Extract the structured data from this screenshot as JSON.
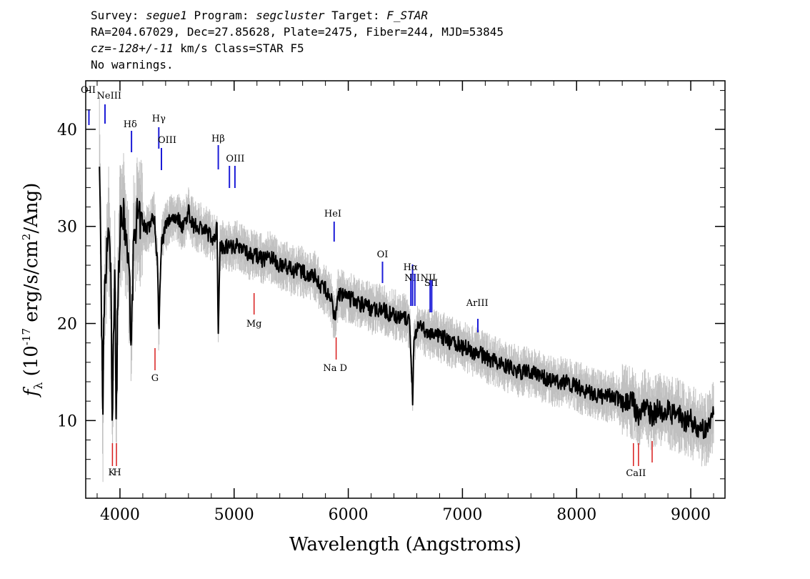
{
  "header": {
    "line1": {
      "survey_label": "Survey: ",
      "survey": "segue1",
      "program_label": " Program: ",
      "program": "segcluster",
      "target_label": " Target: ",
      "target": "F_STAR"
    },
    "line2": "RA=204.67029, Dec=27.85628, Plate=2475, Fiber=244, MJD=53845",
    "line3": {
      "cz": "cz=-128+/-11",
      "rest": " km/s Class=STAR F5"
    },
    "line4": "No warnings."
  },
  "chart_data": {
    "type": "line",
    "xlabel": "Wavelength (Angstroms)",
    "ylabel_main": "f",
    "ylabel_sub": "λ",
    "ylabel_rest": " (10",
    "ylabel_exp": "-17",
    "ylabel_units": " erg/s/cm",
    "ylabel_exp2": "2",
    "ylabel_tail": "/Ang)",
    "xlim": [
      3700,
      9300
    ],
    "ylim": [
      2,
      45
    ],
    "x_ticks": [
      4000,
      5000,
      6000,
      7000,
      8000,
      9000
    ],
    "x_tick_labels": [
      "4000",
      "5000",
      "6000",
      "7000",
      "8000",
      "9000"
    ],
    "y_ticks": [
      10,
      20,
      30,
      40
    ],
    "y_tick_labels": [
      "10",
      "20",
      "30",
      "40"
    ],
    "series": [
      {
        "color": "#000000",
        "x": [
          3820,
          3835,
          3850,
          3860,
          3880,
          3900,
          3920,
          3933,
          3945,
          3955,
          3968,
          3980,
          4000,
          4030,
          4060,
          4080,
          4101,
          4120,
          4150,
          4200,
          4250,
          4300,
          4330,
          4340,
          4360,
          4400,
          4450,
          4500,
          4550,
          4600,
          4650,
          4700,
          4750,
          4800,
          4830,
          4850,
          4861,
          4875,
          4900,
          4950,
          5000,
          5050,
          5100,
          5150,
          5200,
          5250,
          5300,
          5350,
          5400,
          5450,
          5500,
          5550,
          5600,
          5650,
          5700,
          5750,
          5800,
          5850,
          5880,
          5893,
          5910,
          5950,
          6000,
          6050,
          6100,
          6150,
          6200,
          6250,
          6300,
          6350,
          6400,
          6450,
          6500,
          6540,
          6555,
          6563,
          6575,
          6600,
          6650,
          6700,
          6750,
          6800,
          6850,
          6900,
          6950,
          7000,
          7050,
          7100,
          7150,
          7200,
          7300,
          7400,
          7500,
          7600,
          7700,
          7800,
          7900,
          8000,
          8100,
          8200,
          8300,
          8400,
          8498,
          8520,
          8542,
          8560,
          8600,
          8662,
          8700,
          8750,
          8800,
          8850,
          8900,
          8950,
          9000,
          9050,
          9100,
          9150,
          9200
        ],
        "y": [
          37,
          25,
          9.2,
          21,
          26,
          30,
          25,
          9.3,
          19,
          27,
          9,
          22,
          30,
          31,
          28,
          25,
          17.5,
          29,
          31,
          30,
          30,
          31,
          26,
          19,
          28,
          30,
          31,
          31,
          30,
          31.5,
          30,
          30,
          29.5,
          29,
          28.5,
          30,
          19,
          28,
          28,
          28,
          28,
          28,
          27.5,
          27,
          27,
          26.5,
          27,
          26.5,
          26,
          26,
          25.5,
          25.5,
          25.3,
          25,
          25,
          24,
          23.5,
          22.5,
          20.5,
          21,
          23,
          23,
          22.5,
          22.5,
          22,
          22,
          21.5,
          21.5,
          21.5,
          21,
          21,
          20.5,
          20.5,
          20,
          15,
          12,
          18,
          19.5,
          19.5,
          19,
          19,
          18.5,
          18.5,
          18,
          18,
          17.5,
          17.5,
          17,
          17,
          16.5,
          16,
          15.5,
          15,
          15,
          14.5,
          14,
          14,
          13.5,
          13,
          12.5,
          12.5,
          12,
          11.8,
          11,
          10.5,
          11,
          11.5,
          10.5,
          11,
          11,
          11,
          10.5,
          10.5,
          10,
          10,
          9.5,
          9,
          9,
          10.5
        ]
      }
    ],
    "emission_lines": [
      {
        "label": "OII",
        "wavelength": 3728
      },
      {
        "label": "NeIII",
        "wavelength": 3869
      },
      {
        "label": "Hδ",
        "wavelength": 4101
      },
      {
        "label": "Hγ",
        "wavelength": 4340
      },
      {
        "label": "OIII",
        "wavelength": 4363
      },
      {
        "label": "Hβ",
        "wavelength": 4861
      },
      {
        "label": "OIII",
        "wavelength": 4959
      },
      {
        "label": "OIII",
        "wavelength": 5007
      },
      {
        "label": "HeI",
        "wavelength": 5876
      },
      {
        "label": "OI",
        "wavelength": 6300
      },
      {
        "label": "NII",
        "wavelength": 6548
      },
      {
        "label": "Hα",
        "wavelength": 6563
      },
      {
        "label": "NII",
        "wavelength": 6583
      },
      {
        "label": "SII",
        "wavelength": 6717
      },
      {
        "label": "SII",
        "wavelength": 6731
      },
      {
        "label": "ArIII",
        "wavelength": 7135
      }
    ],
    "absorption_lines": [
      {
        "label": "K",
        "wavelength": 3934
      },
      {
        "label": "H",
        "wavelength": 3969
      },
      {
        "label": "G",
        "wavelength": 4307
      },
      {
        "label": "Mg",
        "wavelength": 5175
      },
      {
        "label": "Na D",
        "wavelength": 5894
      },
      {
        "label": "CaII",
        "wavelength": 8498
      },
      {
        "label": "CaII",
        "wavelength": 8542
      },
      {
        "label": "CaII",
        "wavelength": 8662
      }
    ],
    "colors": {
      "flux": "#000000",
      "error_band": "#c0c0c0",
      "emission": "#1c1cd8",
      "absorption": "#d81c1c"
    },
    "grid": false
  }
}
